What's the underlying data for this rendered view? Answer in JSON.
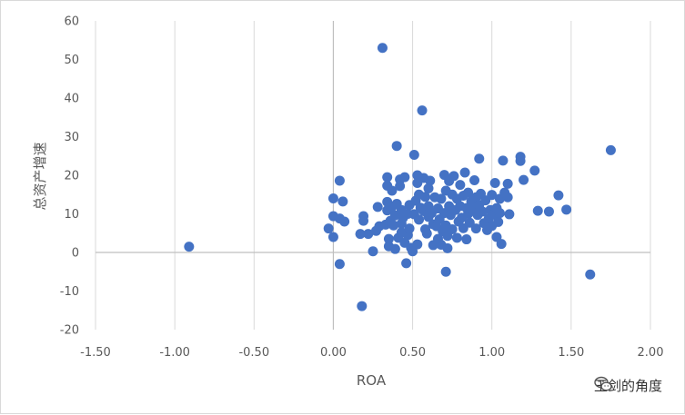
{
  "chart_data": {
    "type": "scatter",
    "title": "",
    "xlabel": "ROA",
    "ylabel": "总资产增速",
    "xlim": [
      -1.5,
      2.0
    ],
    "ylim": [
      -20,
      60
    ],
    "x_ticks": [
      "-1.50",
      "-1.00",
      "-0.50",
      "0.00",
      "0.50",
      "1.00",
      "1.50",
      "2.00"
    ],
    "y_ticks": [
      "-20",
      "-10",
      "0",
      "10",
      "20",
      "30",
      "40",
      "50",
      "60"
    ],
    "grid": "vertical",
    "legend": "none",
    "marker_color": "#4472C4",
    "series": [
      {
        "points": [
          [
            -0.91,
            1.5
          ],
          [
            -0.03,
            6.2
          ],
          [
            0.0,
            9.4
          ],
          [
            0.0,
            14.0
          ],
          [
            0.0,
            4.0
          ],
          [
            0.04,
            18.6
          ],
          [
            0.04,
            -3.0
          ],
          [
            0.04,
            8.8
          ],
          [
            0.06,
            13.2
          ],
          [
            0.07,
            8.0
          ],
          [
            0.17,
            4.8
          ],
          [
            0.18,
            -13.9
          ],
          [
            0.19,
            9.4
          ],
          [
            0.19,
            8.2
          ],
          [
            0.22,
            4.8
          ],
          [
            0.25,
            0.3
          ],
          [
            0.27,
            5.6
          ],
          [
            0.28,
            11.8
          ],
          [
            0.29,
            6.8
          ],
          [
            0.31,
            53.0
          ],
          [
            0.33,
            7.2
          ],
          [
            0.34,
            10.9
          ],
          [
            0.34,
            19.5
          ],
          [
            0.34,
            17.3
          ],
          [
            0.34,
            13.1
          ],
          [
            0.35,
            3.5
          ],
          [
            0.35,
            1.6
          ],
          [
            0.36,
            8.2
          ],
          [
            0.37,
            11.8
          ],
          [
            0.37,
            16.0
          ],
          [
            0.38,
            7.0
          ],
          [
            0.39,
            0.9
          ],
          [
            0.39,
            9.6
          ],
          [
            0.4,
            27.6
          ],
          [
            0.4,
            12.6
          ],
          [
            0.41,
            3.8
          ],
          [
            0.42,
            18.9
          ],
          [
            0.42,
            17.2
          ],
          [
            0.43,
            7.5
          ],
          [
            0.43,
            5.2
          ],
          [
            0.43,
            11.0
          ],
          [
            0.44,
            9.0
          ],
          [
            0.45,
            19.5
          ],
          [
            0.45,
            2.5
          ],
          [
            0.46,
            -2.8
          ],
          [
            0.47,
            10.0
          ],
          [
            0.47,
            4.5
          ],
          [
            0.48,
            12.3
          ],
          [
            0.48,
            6.2
          ],
          [
            0.49,
            1.2
          ],
          [
            0.5,
            0.3
          ],
          [
            0.51,
            25.3
          ],
          [
            0.51,
            9.9
          ],
          [
            0.52,
            13.4
          ],
          [
            0.53,
            20.0
          ],
          [
            0.53,
            18.0
          ],
          [
            0.53,
            2.1
          ],
          [
            0.54,
            15.0
          ],
          [
            0.54,
            8.5
          ],
          [
            0.55,
            11.6
          ],
          [
            0.56,
            36.8
          ],
          [
            0.57,
            10.7
          ],
          [
            0.57,
            19.3
          ],
          [
            0.58,
            14.4
          ],
          [
            0.58,
            6.0
          ],
          [
            0.59,
            4.9
          ],
          [
            0.6,
            16.6
          ],
          [
            0.6,
            12.0
          ],
          [
            0.6,
            9.2
          ],
          [
            0.61,
            18.6
          ],
          [
            0.62,
            10.2
          ],
          [
            0.63,
            7.3
          ],
          [
            0.63,
            1.9
          ],
          [
            0.64,
            14.3
          ],
          [
            0.65,
            6.8
          ],
          [
            0.66,
            11.4
          ],
          [
            0.66,
            3.5
          ],
          [
            0.67,
            8.6
          ],
          [
            0.68,
            13.9
          ],
          [
            0.68,
            2.0
          ],
          [
            0.69,
            5.5
          ],
          [
            0.7,
            20.1
          ],
          [
            0.7,
            10.2
          ],
          [
            0.71,
            16.0
          ],
          [
            0.71,
            7.0
          ],
          [
            0.71,
            -5.0
          ],
          [
            0.72,
            4.3
          ],
          [
            0.72,
            1.1
          ],
          [
            0.73,
            18.5
          ],
          [
            0.73,
            12.0
          ],
          [
            0.74,
            9.7
          ],
          [
            0.75,
            15.0
          ],
          [
            0.75,
            6.0
          ],
          [
            0.76,
            19.8
          ],
          [
            0.77,
            11.0
          ],
          [
            0.78,
            3.8
          ],
          [
            0.78,
            13.9
          ],
          [
            0.79,
            8.0
          ],
          [
            0.8,
            17.5
          ],
          [
            0.8,
            12.0
          ],
          [
            0.81,
            9.0
          ],
          [
            0.82,
            6.3
          ],
          [
            0.82,
            14.7
          ],
          [
            0.83,
            20.7
          ],
          [
            0.84,
            11.5
          ],
          [
            0.84,
            3.4
          ],
          [
            0.85,
            15.5
          ],
          [
            0.85,
            10.0
          ],
          [
            0.86,
            7.7
          ],
          [
            0.87,
            13.2
          ],
          [
            0.88,
            11.0
          ],
          [
            0.89,
            18.7
          ],
          [
            0.9,
            14.3
          ],
          [
            0.9,
            6.2
          ],
          [
            0.91,
            9.7
          ],
          [
            0.92,
            24.3
          ],
          [
            0.92,
            12.3
          ],
          [
            0.93,
            15.2
          ],
          [
            0.94,
            10.6
          ],
          [
            0.95,
            7.6
          ],
          [
            0.96,
            13.5
          ],
          [
            0.97,
            5.8
          ],
          [
            0.98,
            8.8
          ],
          [
            0.99,
            11.0
          ],
          [
            1.0,
            14.9
          ],
          [
            1.0,
            6.9
          ],
          [
            1.01,
            9.8
          ],
          [
            1.02,
            18.0
          ],
          [
            1.03,
            11.5
          ],
          [
            1.03,
            4.0
          ],
          [
            1.04,
            7.9
          ],
          [
            1.05,
            13.9
          ],
          [
            1.05,
            10.2
          ],
          [
            1.06,
            2.2
          ],
          [
            1.07,
            23.8
          ],
          [
            1.08,
            15.5
          ],
          [
            1.1,
            17.8
          ],
          [
            1.1,
            14.3
          ],
          [
            1.11,
            9.9
          ],
          [
            1.18,
            23.7
          ],
          [
            1.18,
            24.8
          ],
          [
            1.2,
            18.8
          ],
          [
            1.27,
            21.2
          ],
          [
            1.29,
            10.8
          ],
          [
            1.36,
            10.6
          ],
          [
            1.42,
            14.8
          ],
          [
            1.47,
            11.1
          ],
          [
            1.62,
            -5.7
          ],
          [
            1.75,
            26.5
          ]
        ]
      }
    ]
  },
  "watermark": {
    "icon": "wechat-logo-icon",
    "text": "王剑的角度"
  }
}
